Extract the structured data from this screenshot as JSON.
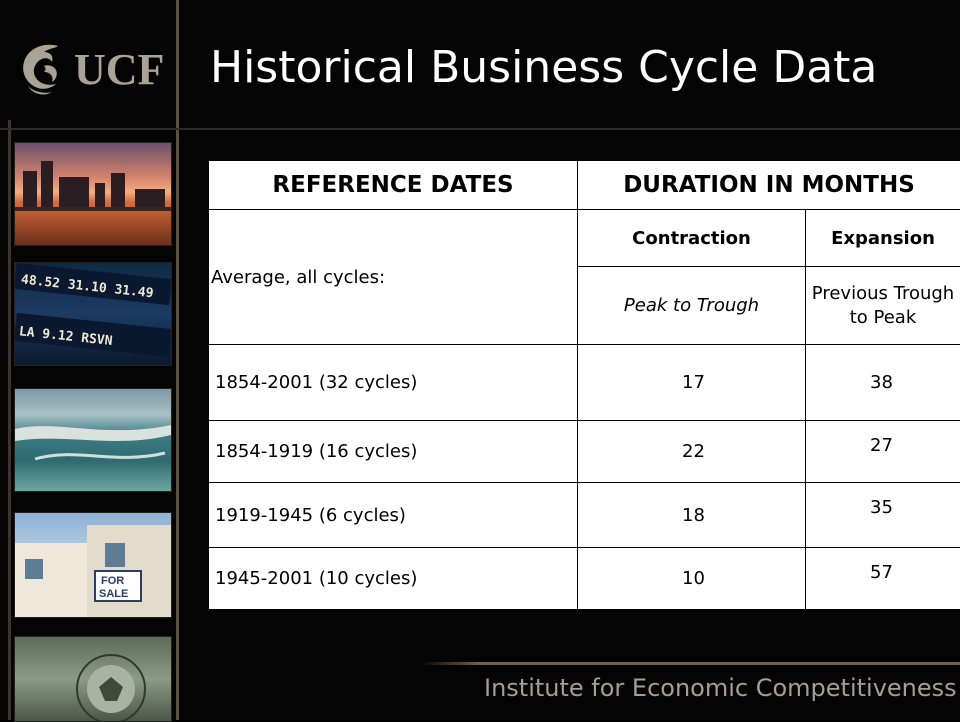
{
  "header": {
    "logo_text": "UCF",
    "title": "Historical Business Cycle Data"
  },
  "photos": [
    {
      "label": "city-skyline-sunset"
    },
    {
      "label": "stock-ticker"
    },
    {
      "label": "coastal-aerial"
    },
    {
      "label": "for-sale-house"
    },
    {
      "label": "dollar-bill-seal"
    }
  ],
  "table": {
    "headers": {
      "reference_dates": "REFERENCE DATES",
      "duration": "DURATION IN MONTHS",
      "contraction": "Contraction",
      "expansion": "Expansion",
      "peak_to_trough": "Peak to Trough",
      "trough_to_peak": "Previous Trough to Peak",
      "average_label": "Average, all cycles:"
    },
    "rows": [
      {
        "period": "1854-2001 (32 cycles)",
        "contraction": "17",
        "expansion": "38"
      },
      {
        "period": "1854-1919 (16 cycles)",
        "contraction": "22",
        "expansion": "27"
      },
      {
        "period": "1919-1945 (6 cycles)",
        "contraction": "18",
        "expansion": "35"
      },
      {
        "period": "1945-2001 (10 cycles)",
        "contraction": "10",
        "expansion": "57"
      }
    ]
  },
  "footer": {
    "text": "Institute for Economic Competitiveness"
  },
  "colors": {
    "background": "#040404",
    "title": "#ffffff",
    "footer": "#a79e8e",
    "logo": "#aaa296"
  }
}
